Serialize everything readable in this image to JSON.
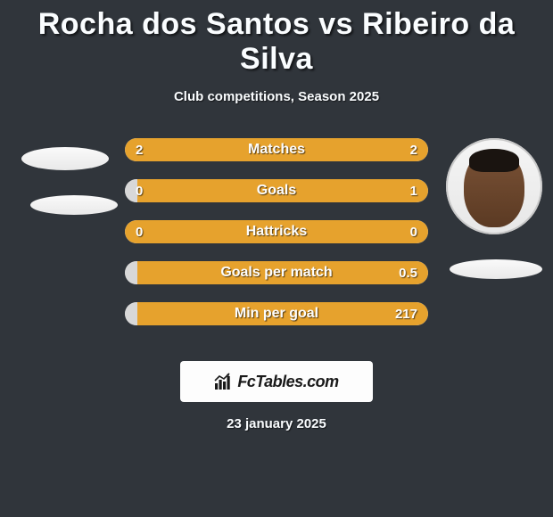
{
  "title": "Rocha dos Santos vs Ribeiro da Silva",
  "subtitle": "Club competitions, Season 2025",
  "date": "23 january 2025",
  "brand": {
    "text": "FcTables.com"
  },
  "colors": {
    "background": "#30353b",
    "text": "#fafdff",
    "bar_track": "#e0e0e0",
    "left_fill": "#e6a22d",
    "right_fill": "#e6a22d",
    "blank_fill": "#d8d8d8",
    "brand_bg": "#fdfdfd",
    "brand_text": "#1a1a1a"
  },
  "player_left": {
    "has_photo": false
  },
  "player_right": {
    "has_photo": true
  },
  "stats": [
    {
      "label": "Matches",
      "left_value": "2",
      "right_value": "2",
      "left_pct": 50,
      "right_pct": 50,
      "left_color": "#e6a22d",
      "right_color": "#e6a22d"
    },
    {
      "label": "Goals",
      "left_value": "0",
      "right_value": "1",
      "left_pct": 4,
      "right_pct": 96,
      "left_color": "#d8d8d8",
      "right_color": "#e6a22d"
    },
    {
      "label": "Hattricks",
      "left_value": "0",
      "right_value": "0",
      "left_pct": 50,
      "right_pct": 50,
      "left_color": "#e6a22d",
      "right_color": "#e6a22d"
    },
    {
      "label": "Goals per match",
      "left_value": "",
      "right_value": "0.5",
      "left_pct": 4,
      "right_pct": 96,
      "left_color": "#d8d8d8",
      "right_color": "#e6a22d"
    },
    {
      "label": "Min per goal",
      "left_value": "",
      "right_value": "217",
      "left_pct": 4,
      "right_pct": 96,
      "left_color": "#d8d8d8",
      "right_color": "#e6a22d"
    }
  ]
}
